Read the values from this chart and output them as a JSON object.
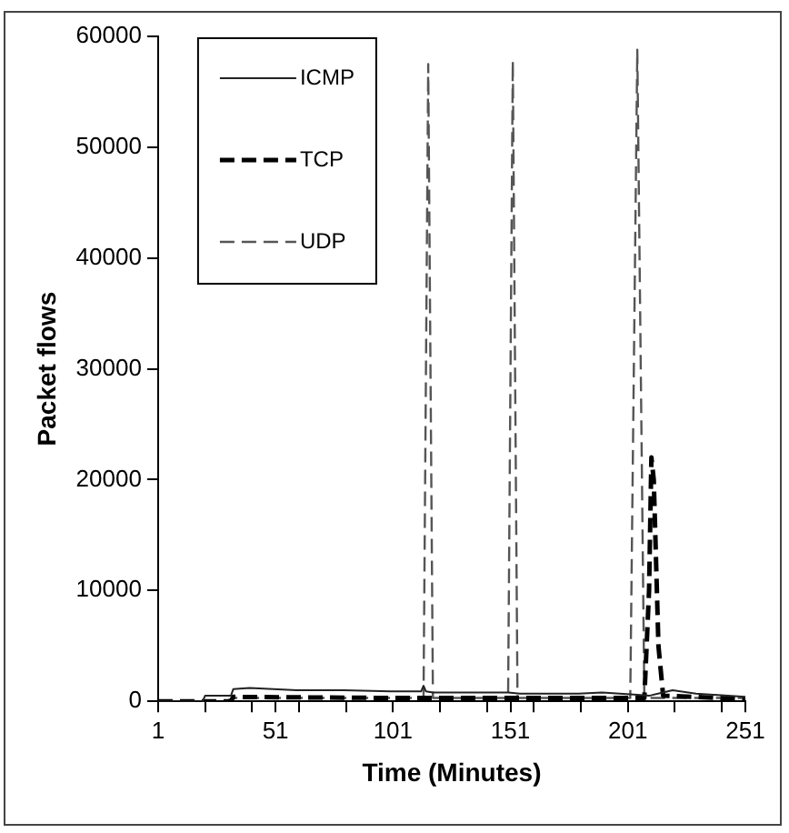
{
  "chart_data": {
    "type": "line",
    "xlabel": "Time (Minutes)",
    "ylabel": "Packet flows",
    "xlim": [
      1,
      251
    ],
    "xticks": [
      1,
      {
        "value": 21,
        "label": null
      },
      {
        "value": 41,
        "label": null
      },
      51,
      {
        "value": 61,
        "label": null
      },
      {
        "value": 81,
        "label": null
      },
      101,
      {
        "value": 121,
        "label": null
      },
      {
        "value": 141,
        "label": null
      },
      151,
      {
        "value": 161,
        "label": null
      },
      {
        "value": 181,
        "label": null
      },
      201,
      {
        "value": 221,
        "label": null
      },
      {
        "value": 241,
        "label": null
      },
      251
    ],
    "ylim": [
      0,
      60000
    ],
    "yticks": [
      0,
      10000,
      20000,
      30000,
      40000,
      50000,
      60000
    ],
    "grid": false,
    "legend": "top left",
    "marker": "none",
    "series": [
      {
        "name": "ICMP",
        "color": "#222222",
        "line_style": "solid",
        "x": [
          1,
          20,
          21,
          32,
          33,
          40,
          60,
          80,
          100,
          113,
          114,
          115,
          118,
          150,
          155,
          180,
          190,
          205,
          210,
          220,
          230,
          251
        ],
        "values": [
          0,
          0,
          500,
          500,
          1100,
          1200,
          1000,
          1000,
          900,
          900,
          1400,
          900,
          800,
          800,
          700,
          700,
          800,
          600,
          500,
          1000,
          700,
          400
        ]
      },
      {
        "name": "TCP",
        "color": "#000000",
        "line_style": "dashed",
        "x": [
          1,
          32,
          33,
          100,
          150,
          200,
          208,
          210,
          211,
          212,
          214,
          216,
          230,
          251
        ],
        "values": [
          0,
          0,
          400,
          300,
          300,
          300,
          300,
          10000,
          22000,
          20000,
          5000,
          500,
          400,
          200
        ]
      },
      {
        "name": "UDP",
        "color": "#555555",
        "line_style": "dashed",
        "x": [
          1,
          30,
          33,
          114,
          116,
          118,
          150,
          152,
          154,
          202,
          205,
          208,
          251
        ],
        "values": [
          0,
          0,
          300,
          300,
          57500,
          300,
          300,
          57800,
          300,
          300,
          58800,
          300,
          300
        ]
      }
    ]
  }
}
